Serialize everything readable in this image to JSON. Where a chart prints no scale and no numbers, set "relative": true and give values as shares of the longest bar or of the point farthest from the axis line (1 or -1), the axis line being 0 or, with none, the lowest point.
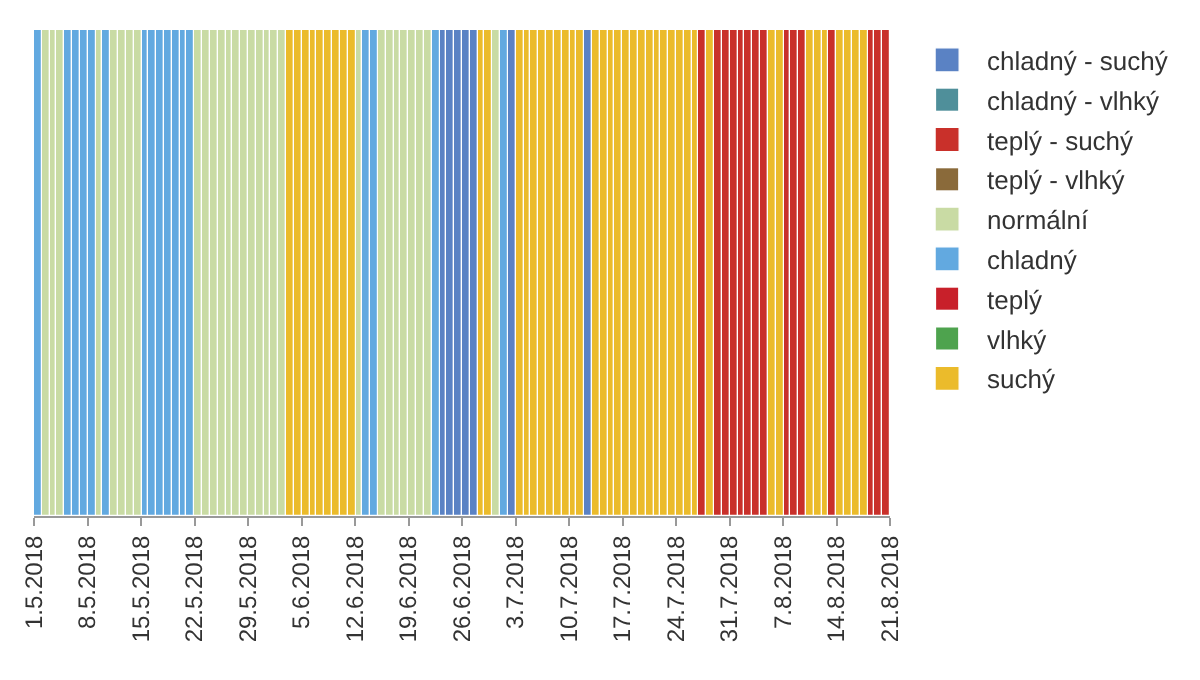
{
  "chart_data": {
    "type": "bar",
    "relative": true,
    "legend": "right",
    "xlim": [
      "2018-05-01",
      "2018-08-21"
    ],
    "xticks": [
      {
        "value": "2018-05-01",
        "label": "1.5.2018"
      },
      {
        "value": "2018-05-08",
        "label": "8.5.2018"
      },
      {
        "value": "2018-05-15",
        "label": "15.5.2018"
      },
      {
        "value": "2018-05-22",
        "label": "22.5.2018"
      },
      {
        "value": "2018-05-29",
        "label": "29.5.2018"
      },
      {
        "value": "2018-06-05",
        "label": "5.6.2018"
      },
      {
        "value": "2018-06-12",
        "label": "12.6.2018"
      },
      {
        "value": "2018-06-19",
        "label": "19.6.2018"
      },
      {
        "value": "2018-06-26",
        "label": "26.6.2018"
      },
      {
        "value": "2018-07-03",
        "label": "3.7.2018"
      },
      {
        "value": "2018-07-10",
        "label": "10.7.2018"
      },
      {
        "value": "2018-07-17",
        "label": "17.7.2018"
      },
      {
        "value": "2018-07-24",
        "label": "24.7.2018"
      },
      {
        "value": "2018-07-31",
        "label": "31.7.2018"
      },
      {
        "value": "2018-08-07",
        "label": "7.8.2018"
      },
      {
        "value": "2018-08-14",
        "label": "14.8.2018"
      },
      {
        "value": "2018-08-21",
        "label": "21.8.2018"
      }
    ],
    "series": [
      {
        "name": "chladný - suchý",
        "color": "#5a82c4",
        "x": [
          "2018-06-23",
          "2018-06-24",
          "2018-06-25",
          "2018-06-26",
          "2018-06-27",
          "2018-07-02",
          "2018-07-12"
        ],
        "values": [
          1,
          1,
          1,
          1,
          1,
          1,
          1
        ]
      },
      {
        "name": "chladný - vlhký",
        "color": "#4f8f9a"
      },
      {
        "name": "teplý - suchý",
        "color": "#c9302a",
        "x": [
          "2018-07-27",
          "2018-07-29",
          "2018-07-30",
          "2018-07-31",
          "2018-08-01",
          "2018-08-02",
          "2018-08-03",
          "2018-08-04",
          "2018-08-07",
          "2018-08-08",
          "2018-08-09",
          "2018-08-13",
          "2018-08-18",
          "2018-08-19",
          "2018-08-20"
        ],
        "values": [
          1,
          1,
          1,
          1,
          1,
          1,
          1,
          1,
          1,
          1,
          1,
          1,
          1,
          1,
          1
        ]
      },
      {
        "name": "teplý - vlhký",
        "color": "#8a6a3a"
      },
      {
        "name": "normální",
        "color": "#c9dba4",
        "x": [
          "2018-05-02",
          "2018-05-03",
          "2018-05-04",
          "2018-05-09",
          "2018-05-11",
          "2018-05-12",
          "2018-05-13",
          "2018-05-14",
          "2018-05-22",
          "2018-05-23",
          "2018-05-24",
          "2018-05-25",
          "2018-05-26",
          "2018-05-27",
          "2018-05-28",
          "2018-05-29",
          "2018-05-30",
          "2018-05-31",
          "2018-06-01",
          "2018-06-02",
          "2018-06-12",
          "2018-06-15",
          "2018-06-16",
          "2018-06-17",
          "2018-06-18",
          "2018-06-19",
          "2018-06-20",
          "2018-06-21",
          "2018-06-30"
        ],
        "values": [
          1,
          1,
          1,
          1,
          1,
          1,
          1,
          1,
          1,
          1,
          1,
          1,
          1,
          1,
          1,
          1,
          1,
          1,
          1,
          1,
          1,
          1,
          1,
          1,
          1,
          1,
          1,
          1,
          1
        ]
      },
      {
        "name": "chladný",
        "color": "#62a9e0",
        "x": [
          "2018-05-01",
          "2018-05-05",
          "2018-05-06",
          "2018-05-07",
          "2018-05-08",
          "2018-05-10",
          "2018-05-15",
          "2018-05-16",
          "2018-05-17",
          "2018-05-18",
          "2018-05-19",
          "2018-05-20",
          "2018-05-21",
          "2018-06-13",
          "2018-06-14",
          "2018-06-22",
          "2018-07-01"
        ],
        "values": [
          1,
          1,
          1,
          1,
          1,
          1,
          1,
          1,
          1,
          1,
          1,
          1,
          1,
          1,
          1,
          1,
          1
        ]
      },
      {
        "name": "teplý",
        "color": "#c8202a"
      },
      {
        "name": "vlhký",
        "color": "#4ea34e"
      },
      {
        "name": "suchý",
        "color": "#ebbb2b",
        "x": [
          "2018-06-03",
          "2018-06-04",
          "2018-06-05",
          "2018-06-06",
          "2018-06-07",
          "2018-06-08",
          "2018-06-09",
          "2018-06-10",
          "2018-06-11",
          "2018-06-28",
          "2018-06-29",
          "2018-07-03",
          "2018-07-04",
          "2018-07-05",
          "2018-07-06",
          "2018-07-07",
          "2018-07-08",
          "2018-07-09",
          "2018-07-10",
          "2018-07-11",
          "2018-07-13",
          "2018-07-14",
          "2018-07-15",
          "2018-07-16",
          "2018-07-17",
          "2018-07-18",
          "2018-07-19",
          "2018-07-20",
          "2018-07-21",
          "2018-07-22",
          "2018-07-23",
          "2018-07-24",
          "2018-07-25",
          "2018-07-26",
          "2018-07-28",
          "2018-08-05",
          "2018-08-06",
          "2018-08-10",
          "2018-08-11",
          "2018-08-12",
          "2018-08-14",
          "2018-08-15",
          "2018-08-16",
          "2018-08-17"
        ],
        "values": [
          1,
          1,
          1,
          1,
          1,
          1,
          1,
          1,
          1,
          1,
          1,
          1,
          1,
          1,
          1,
          1,
          1,
          1,
          1,
          1,
          1,
          1,
          1,
          1,
          1,
          1,
          1,
          1,
          1,
          1,
          1,
          1,
          1,
          1,
          1,
          1,
          1,
          1,
          1,
          1,
          1,
          1,
          1,
          1
        ]
      }
    ]
  }
}
